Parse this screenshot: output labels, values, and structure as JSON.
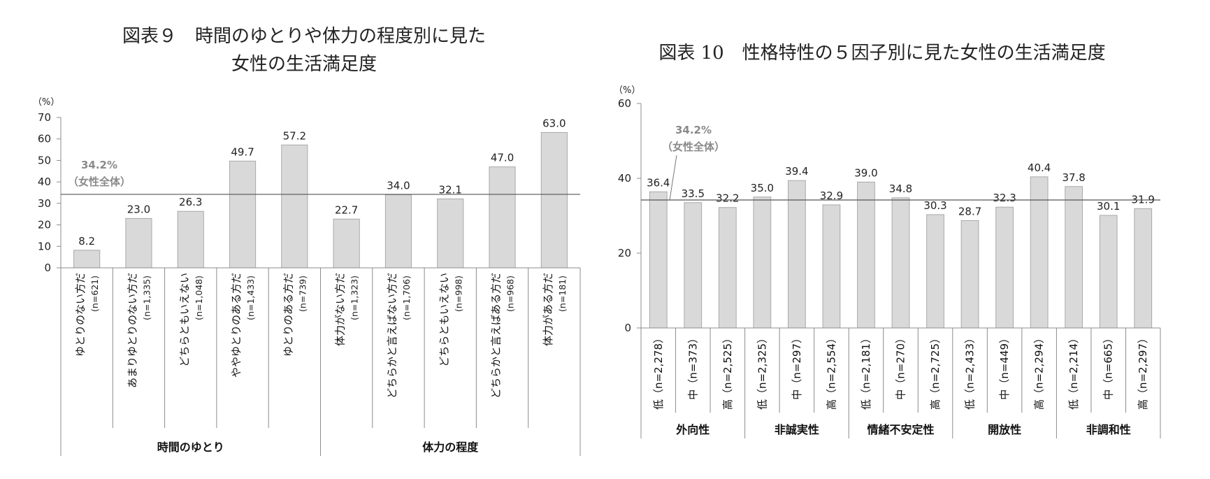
{
  "chart_data": [
    {
      "type": "bar",
      "title_lines": [
        "図表９　時間のゆとりや体力の程度別に見た",
        "女性の生活満足度"
      ],
      "y_unit": "（%）",
      "ylim": [
        0,
        70
      ],
      "yticks": [
        "0",
        "10",
        "20",
        "30",
        "40",
        "50",
        "60",
        "70"
      ],
      "reference": {
        "value": 34.2,
        "label_lines": [
          "34.2%",
          "（女性全体）"
        ]
      },
      "categories": [
        {
          "label": "ゆとりのない方だ",
          "n": "(n=621)",
          "value": 8.2,
          "value_label": "8.2"
        },
        {
          "label": "あまりゆとりのない方だ",
          "n": "(n=1,335)",
          "value": 23.0,
          "value_label": "23.0"
        },
        {
          "label": "どちらともいえない",
          "n": "(n=1,048)",
          "value": 26.3,
          "value_label": "26.3"
        },
        {
          "label": "ややゆとりのある方だ",
          "n": "(n=1,433)",
          "value": 49.7,
          "value_label": "49.7"
        },
        {
          "label": "ゆとりのある方だ",
          "n": "(n=739)",
          "value": 57.2,
          "value_label": "57.2"
        },
        {
          "label": "体力がない方だ",
          "n": "(n=1,323)",
          "value": 22.7,
          "value_label": "22.7"
        },
        {
          "label": "どちらかと言えばない方だ",
          "n": "(n=1,706)",
          "value": 34.0,
          "value_label": "34.0"
        },
        {
          "label": "どちらともいえない",
          "n": "(n=998)",
          "value": 32.1,
          "value_label": "32.1"
        },
        {
          "label": "どちらかと言えばある方だ",
          "n": "(n=968)",
          "value": 47.0,
          "value_label": "47.0"
        },
        {
          "label": "体力がある方だ",
          "n": "(n=181)",
          "value": 63.0,
          "value_label": "63.0"
        }
      ],
      "groups": [
        {
          "label": "時間のゆとり",
          "start": 0,
          "count": 5
        },
        {
          "label": "体力の程度",
          "start": 5,
          "count": 5
        }
      ]
    },
    {
      "type": "bar",
      "title_lines": [
        "図表 10　性格特性の５因子別に見た女性の生活満足度"
      ],
      "y_unit": "（%）",
      "ylim": [
        0,
        60
      ],
      "yticks": [
        "0",
        "20",
        "40",
        "60"
      ],
      "reference": {
        "value": 34.2,
        "label_lines": [
          "34.2%",
          "（女性全体）"
        ]
      },
      "categories": [
        {
          "label": "低（n=2,278）",
          "value": 36.4,
          "value_label": "36.4"
        },
        {
          "label": "中（n=373）",
          "value": 33.5,
          "value_label": "33.5"
        },
        {
          "label": "高（n=2,525）",
          "value": 32.2,
          "value_label": "32.2"
        },
        {
          "label": "低（n=2,325）",
          "value": 35.0,
          "value_label": "35.0"
        },
        {
          "label": "中（n=297）",
          "value": 39.4,
          "value_label": "39.4"
        },
        {
          "label": "高（n=2,554）",
          "value": 32.9,
          "value_label": "32.9"
        },
        {
          "label": "低（n=2,181）",
          "value": 39.0,
          "value_label": "39.0"
        },
        {
          "label": "中（n=270）",
          "value": 34.8,
          "value_label": "34.8"
        },
        {
          "label": "高（n=2,725）",
          "value": 30.3,
          "value_label": "30.3"
        },
        {
          "label": "低（n=2,433）",
          "value": 28.7,
          "value_label": "28.7"
        },
        {
          "label": "中（n=449）",
          "value": 32.3,
          "value_label": "32.3"
        },
        {
          "label": "高（n=2,294）",
          "value": 40.4,
          "value_label": "40.4"
        },
        {
          "label": "低（n=2,214）",
          "value": 37.8,
          "value_label": "37.8"
        },
        {
          "label": "中（n=665）",
          "value": 30.1,
          "value_label": "30.1"
        },
        {
          "label": "高（n=2,297）",
          "value": 31.9,
          "value_label": "31.9"
        }
      ],
      "groups": [
        {
          "label": "外向性",
          "start": 0,
          "count": 3
        },
        {
          "label": "非誠実性",
          "start": 3,
          "count": 3
        },
        {
          "label": "情緒不安定性",
          "start": 6,
          "count": 3
        },
        {
          "label": "開放性",
          "start": 9,
          "count": 3
        },
        {
          "label": "非調和性",
          "start": 12,
          "count": 3
        }
      ]
    }
  ]
}
